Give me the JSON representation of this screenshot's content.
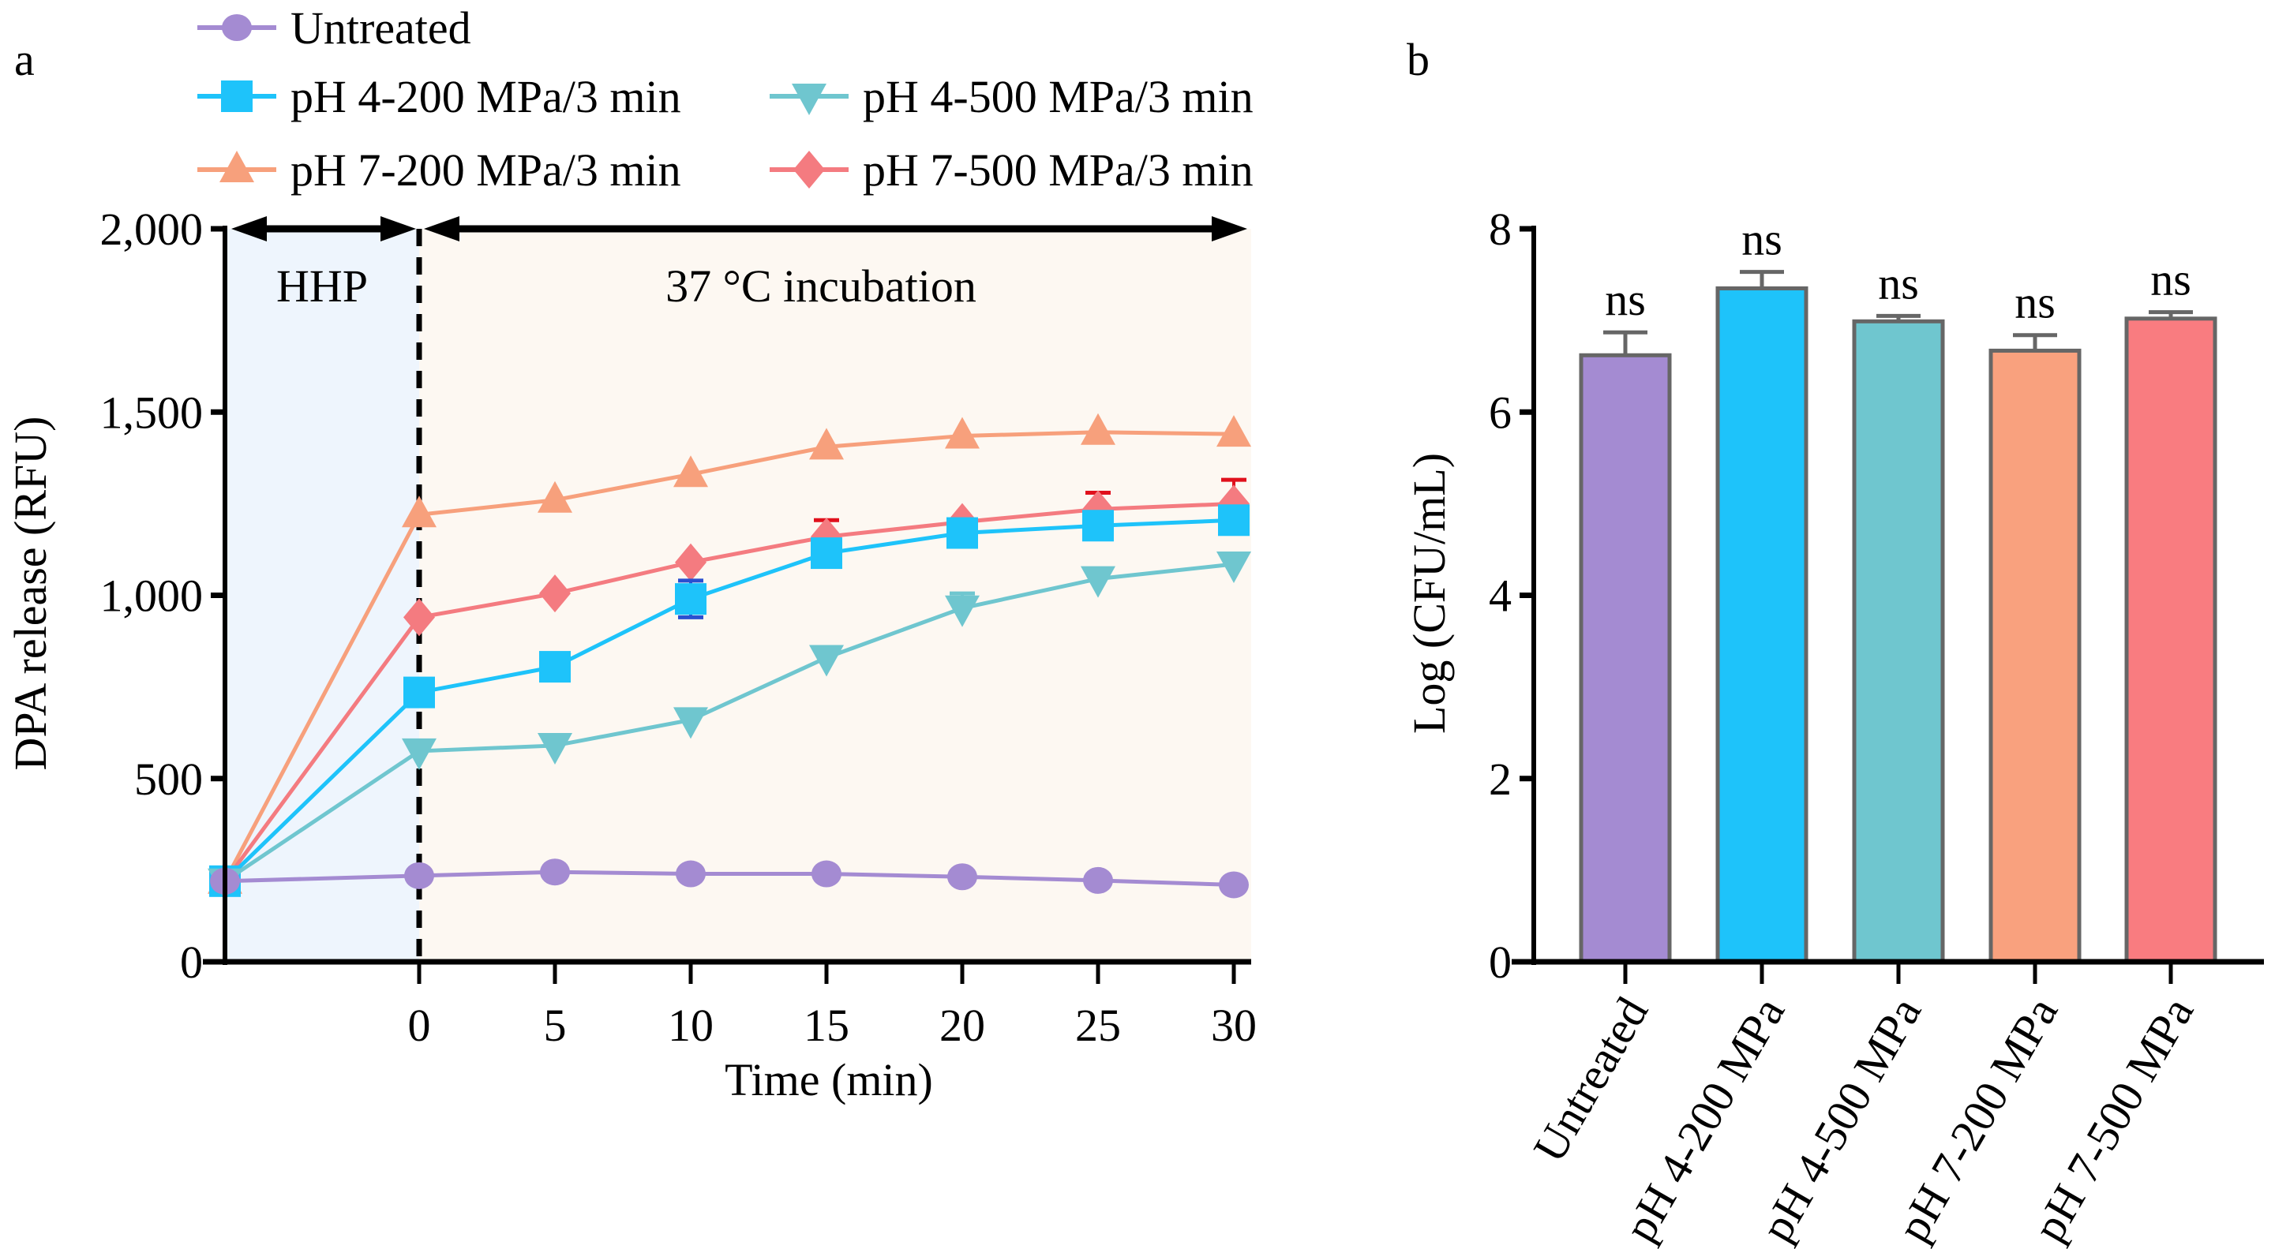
{
  "chart_data": [
    {
      "panel_label": "a",
      "type": "line",
      "xlabel": "Time (min)",
      "ylabel": "DPA release (RFU)",
      "ylim": [
        0,
        2000
      ],
      "yticks": [
        0,
        500,
        1000,
        1500,
        2000
      ],
      "ytick_labels": [
        "0",
        "500",
        "1,000",
        "1,500",
        "2,000"
      ],
      "xticks": [
        0,
        5,
        10,
        15,
        20,
        25,
        30
      ],
      "xtick_labels": [
        "0",
        "5",
        "10",
        "15",
        "20",
        "25",
        "30"
      ],
      "x": [
        -7.2,
        0,
        5,
        10,
        15,
        20,
        25,
        30
      ],
      "regions": [
        {
          "label": "HHP",
          "from": -7.2,
          "to": 0,
          "color": "#eef5fd"
        },
        {
          "label": "37 °C incubation",
          "from": 0,
          "to": 30,
          "color": "#fdf8f2"
        }
      ],
      "legend_position": "top",
      "series": [
        {
          "name": "Untreated",
          "color": "#a48bd2",
          "marker": "circle",
          "values": [
            220,
            235,
            245,
            240,
            240,
            232,
            222,
            210
          ],
          "errors": [
            0,
            0,
            0,
            0,
            0,
            0,
            0,
            0
          ]
        },
        {
          "name": "pH 4-200 MPa/3 min",
          "color": "#1ec3fa",
          "marker": "square",
          "values": [
            220,
            735,
            805,
            990,
            1115,
            1170,
            1190,
            1205
          ],
          "errors": [
            0,
            0,
            0,
            50,
            0,
            0,
            0,
            0
          ],
          "error_color": "#2a4fd0"
        },
        {
          "name": "pH 4-500 MPa/3 min",
          "color": "#6fc6cf",
          "marker": "triangle-down",
          "values": [
            220,
            575,
            590,
            660,
            830,
            965,
            1045,
            1085
          ],
          "errors": [
            0,
            0,
            0,
            0,
            0,
            40,
            0,
            0
          ],
          "error_color": "#6fc6cf"
        },
        {
          "name": "pH 7-200 MPa/3 min",
          "color": "#f7a07c",
          "marker": "triangle-up",
          "values": [
            220,
            1220,
            1260,
            1330,
            1405,
            1435,
            1445,
            1440
          ],
          "errors": [
            0,
            0,
            0,
            0,
            0,
            0,
            0,
            0
          ]
        },
        {
          "name": "pH 7-500 MPa/3 min",
          "color": "#f47b80",
          "marker": "diamond",
          "values": [
            220,
            940,
            1005,
            1090,
            1160,
            1200,
            1235,
            1250
          ],
          "errors": [
            0,
            0,
            0,
            0,
            45,
            0,
            45,
            65
          ],
          "error_color": "#e0101c"
        }
      ]
    },
    {
      "panel_label": "b",
      "type": "bar",
      "ylabel": "Log (CFU/mL)",
      "ylim": [
        0,
        8
      ],
      "yticks": [
        0,
        2,
        4,
        6,
        8
      ],
      "ytick_labels": [
        "0",
        "2",
        "4",
        "6",
        "8"
      ],
      "categories": [
        "Untreated",
        "pH 4-200 MPa",
        "pH 4-500 MPa",
        "pH 7-200 MPa",
        "pH 7-500 MPa"
      ],
      "values": [
        6.62,
        7.35,
        6.99,
        6.67,
        7.02
      ],
      "errors": [
        0.25,
        0.18,
        0.06,
        0.17,
        0.07
      ],
      "annotations": [
        "ns",
        "ns",
        "ns",
        "ns",
        "ns"
      ],
      "colors": [
        "#a48bd2",
        "#1ec3fa",
        "#6fc6cf",
        "#f9a17e",
        "#f97c80"
      ]
    }
  ]
}
